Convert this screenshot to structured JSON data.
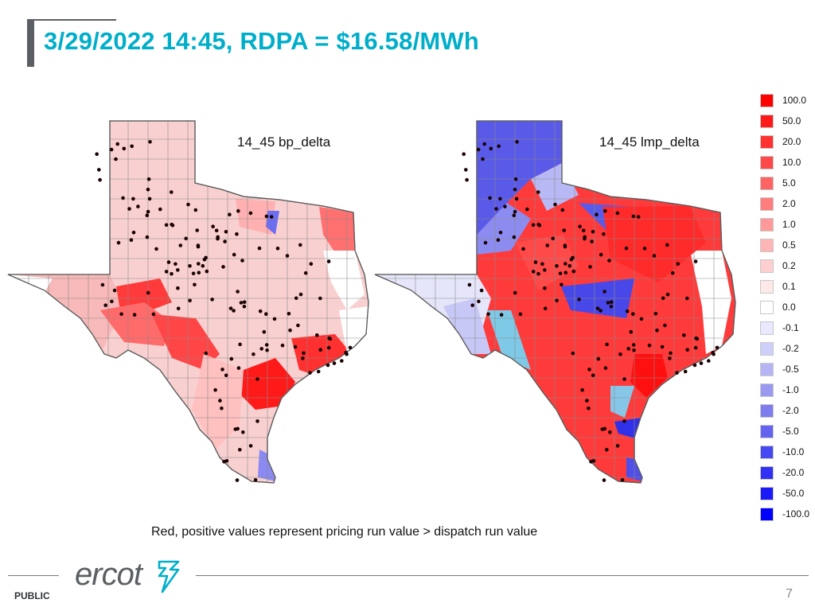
{
  "header": {
    "title": "3/29/2022 14:45, RDPA = $16.58/MWh"
  },
  "maps": [
    {
      "label": "14_45 bp_delta"
    },
    {
      "label": "14_45 lmp_delta"
    }
  ],
  "legend": {
    "entries": [
      {
        "label": "100.0",
        "color": "#ff0000"
      },
      {
        "label": "50.0",
        "color": "#ff1a1a"
      },
      {
        "label": "20.0",
        "color": "#ff3131"
      },
      {
        "label": "10.0",
        "color": "#ff4848"
      },
      {
        "label": "5.0",
        "color": "#ff6363"
      },
      {
        "label": "2.0",
        "color": "#ff7d7d"
      },
      {
        "label": "1.0",
        "color": "#ff9999"
      },
      {
        "label": "0.5",
        "color": "#ffb5b5"
      },
      {
        "label": "0.2",
        "color": "#ffcfcf"
      },
      {
        "label": "0.1",
        "color": "#ffe8e8"
      },
      {
        "label": "0.0",
        "color": "#ffffff"
      },
      {
        "label": "-0.1",
        "color": "#e8e8ff"
      },
      {
        "label": "-0.2",
        "color": "#cfcffb"
      },
      {
        "label": "-0.5",
        "color": "#b5b5f5"
      },
      {
        "label": "-1.0",
        "color": "#9999f0"
      },
      {
        "label": "-2.0",
        "color": "#7d7df0"
      },
      {
        "label": "-5.0",
        "color": "#6363f0"
      },
      {
        "label": "-10.0",
        "color": "#4848f2"
      },
      {
        "label": "-20.0",
        "color": "#3131f5"
      },
      {
        "label": "-50.0",
        "color": "#1a1af8"
      },
      {
        "label": "-100.0",
        "color": "#0000ff"
      }
    ]
  },
  "caption": "Red, positive values represent pricing run value > dispatch run value",
  "footer": {
    "logo_text": "ercot",
    "classification": "PUBLIC",
    "page_number": "7"
  },
  "colors": {
    "title": "#00aeca",
    "accent_bar": "#5b5f63"
  }
}
